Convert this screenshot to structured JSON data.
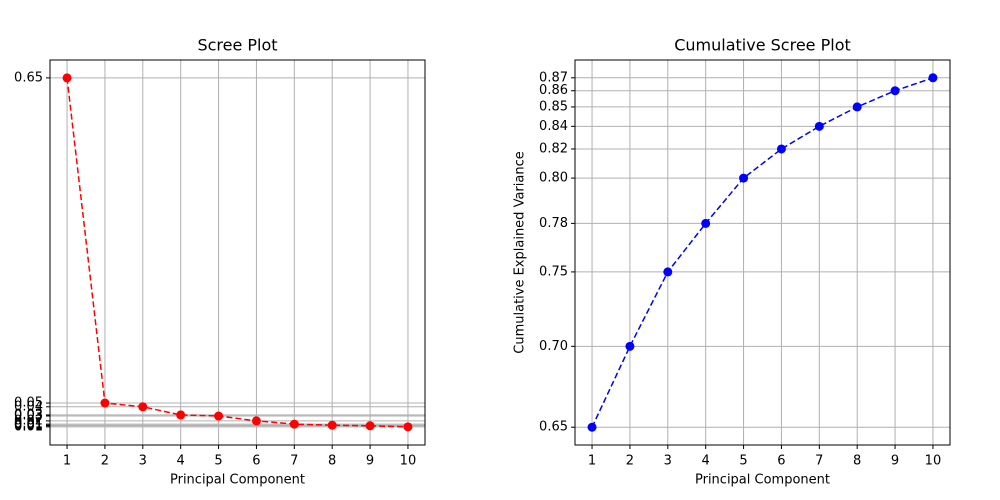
{
  "chart_data": [
    {
      "type": "line",
      "title": "Scree Plot",
      "xlabel": "Principal Component",
      "x": [
        1,
        2,
        3,
        4,
        5,
        6,
        7,
        8,
        9,
        10
      ],
      "series": [
        {
          "color": "#ff0000",
          "values": [
            0.65,
            0.05,
            0.043,
            0.028,
            0.026,
            0.017,
            0.011,
            0.009,
            0.008,
            0.006
          ]
        }
      ],
      "xlim": [
        0.55,
        10.45
      ],
      "xticks": [
        1,
        2,
        3,
        4,
        5,
        6,
        7,
        8,
        9,
        10
      ],
      "ylim": [
        -0.0275,
        0.683
      ],
      "yticks": [
        {
          "value": 0.65,
          "label": "0.65"
        },
        {
          "value": 0.05,
          "label": "0.05"
        },
        {
          "value": 0.043,
          "label": "0.04"
        },
        {
          "value": 0.028,
          "label": "0.03"
        },
        {
          "value": 0.026,
          "label": "0.03"
        },
        {
          "value": 0.017,
          "label": "0.02"
        },
        {
          "value": 0.011,
          "label": "0.01"
        },
        {
          "value": 0.009,
          "label": "0.01"
        },
        {
          "value": 0.008,
          "label": "0.01"
        },
        {
          "value": 0.006,
          "label": "0.01"
        }
      ],
      "grid": true
    },
    {
      "type": "line",
      "title": "Cumulative Scree Plot",
      "xlabel": "Principal Component",
      "ylabel": "Cumulative Explained Variance",
      "x": [
        1,
        2,
        3,
        4,
        5,
        6,
        7,
        8,
        9,
        10
      ],
      "series": [
        {
          "color": "#0000ff",
          "values": [
            0.65,
            0.7,
            0.746,
            0.776,
            0.804,
            0.822,
            0.836,
            0.848,
            0.858,
            0.866
          ]
        }
      ],
      "xlim": [
        0.55,
        10.45
      ],
      "xticks": [
        1,
        2,
        3,
        4,
        5,
        6,
        7,
        8,
        9,
        10
      ],
      "ylim": [
        0.639,
        0.877
      ],
      "yticks": [
        {
          "value": 0.65,
          "label": "0.65"
        },
        {
          "value": 0.7,
          "label": "0.70"
        },
        {
          "value": 0.746,
          "label": "0.75"
        },
        {
          "value": 0.776,
          "label": "0.78"
        },
        {
          "value": 0.804,
          "label": "0.80"
        },
        {
          "value": 0.822,
          "label": "0.82"
        },
        {
          "value": 0.836,
          "label": "0.84"
        },
        {
          "value": 0.848,
          "label": "0.85"
        },
        {
          "value": 0.858,
          "label": "0.86"
        },
        {
          "value": 0.866,
          "label": "0.87"
        }
      ],
      "grid": true
    }
  ]
}
